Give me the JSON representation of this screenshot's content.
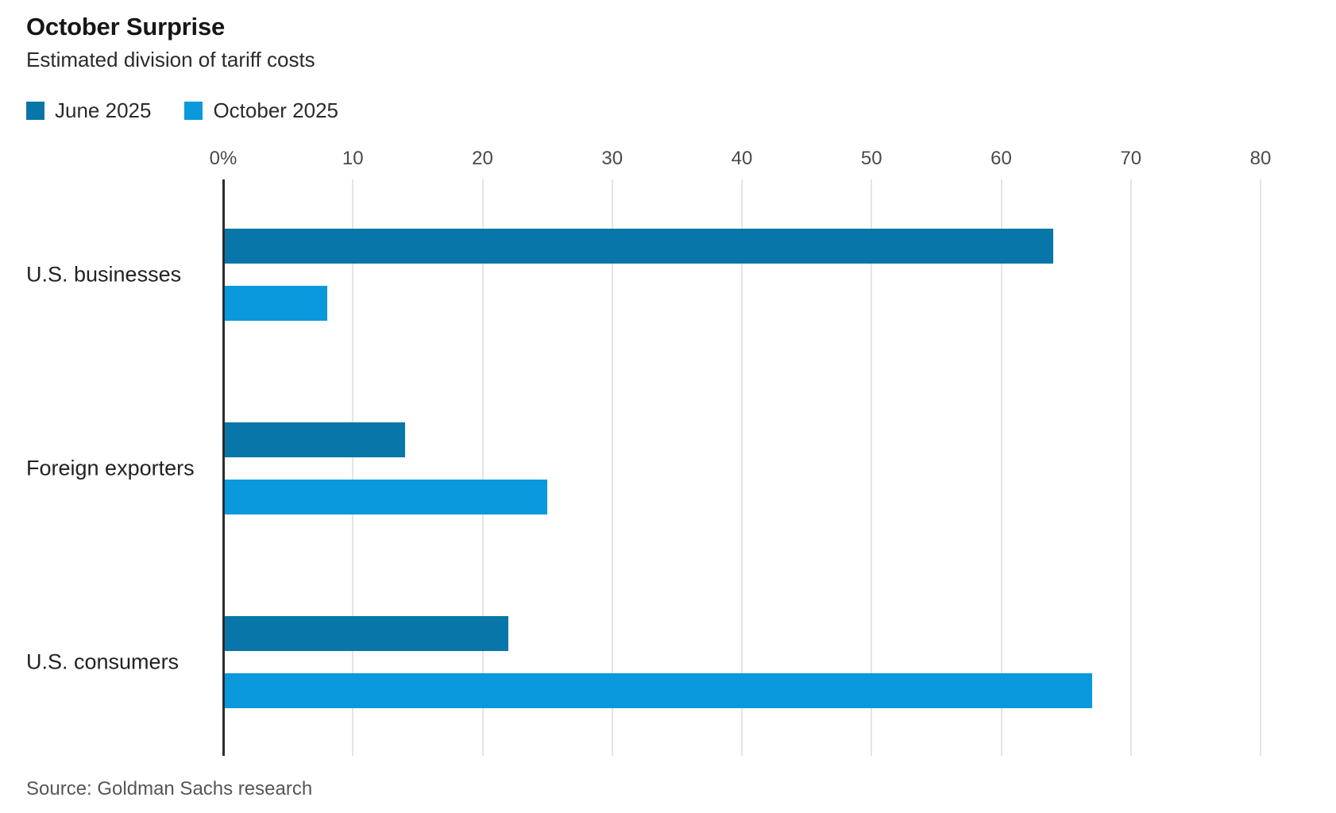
{
  "chart_data": {
    "type": "bar",
    "orientation": "horizontal",
    "title": "October Surprise",
    "subtitle": "Estimated division of tariff costs",
    "source": "Source: Goldman Sachs research",
    "unit": "percent",
    "categories": [
      "U.S. businesses",
      "Foreign exporters",
      "U.S. consumers"
    ],
    "series": [
      {
        "name": "June 2025",
        "color": "#0876a8",
        "values": [
          64,
          14,
          22
        ]
      },
      {
        "name": "October 2025",
        "color": "#0a99dc",
        "values": [
          8,
          25,
          67
        ]
      }
    ],
    "xlim": [
      0,
      80
    ],
    "xticks": [
      {
        "label": "0%",
        "value": 0
      },
      {
        "label": "10",
        "value": 10
      },
      {
        "label": "20",
        "value": 20
      },
      {
        "label": "30",
        "value": 30
      },
      {
        "label": "40",
        "value": 40
      },
      {
        "label": "50",
        "value": 50
      },
      {
        "label": "60",
        "value": 60
      },
      {
        "label": "70",
        "value": 70
      },
      {
        "label": "80",
        "value": 80
      }
    ],
    "grid": "vertical",
    "legend_position": "top-left",
    "axis_color": "#2d2d2d",
    "gridline_color": "#e4e4e4"
  }
}
